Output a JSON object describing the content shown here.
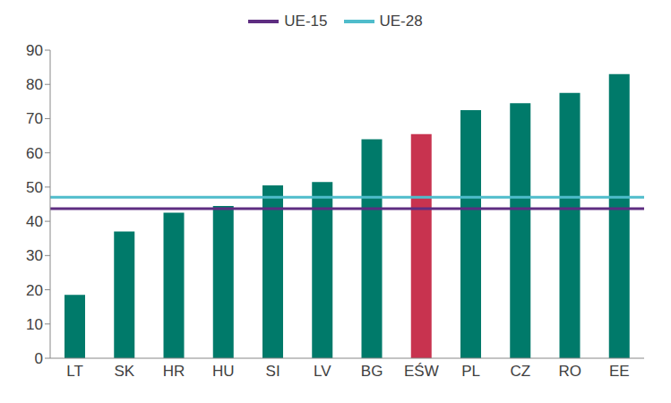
{
  "chart_data": {
    "type": "bar",
    "categories": [
      "LT",
      "SK",
      "HR",
      "HU",
      "SI",
      "LV",
      "BG",
      "EŚW",
      "PL",
      "CZ",
      "RO",
      "EE"
    ],
    "values": [
      18.5,
      37,
      42.5,
      44.5,
      50.5,
      51.5,
      64,
      65.5,
      72.5,
      74.5,
      77.5,
      83
    ],
    "colors": [
      "#007a6a",
      "#007a6a",
      "#007a6a",
      "#007a6a",
      "#007a6a",
      "#007a6a",
      "#007a6a",
      "#c8334f",
      "#007a6a",
      "#007a6a",
      "#007a6a",
      "#007a6a"
    ],
    "reference_lines": [
      {
        "name": "UE-15",
        "color": "#5e2d81",
        "value": 43.7
      },
      {
        "name": "UE-28",
        "color": "#4fbccb",
        "value": 47
      }
    ],
    "ylim": [
      0,
      90
    ],
    "yticks": [
      0,
      10,
      20,
      30,
      40,
      50,
      60,
      70,
      80,
      90
    ],
    "grid": false,
    "legend": "top"
  }
}
